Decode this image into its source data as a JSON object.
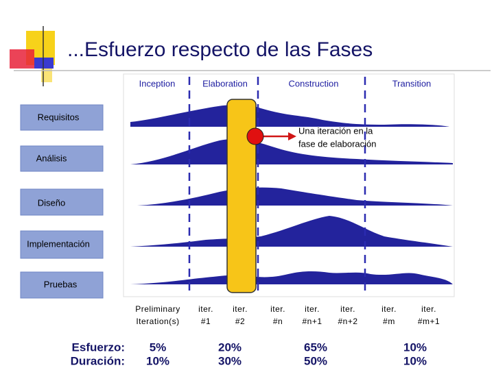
{
  "header": {
    "title": "...Esfuerzo respecto de las Fases"
  },
  "phases": [
    "Inception",
    "Elaboration",
    "Construction",
    "Transition"
  ],
  "disciplines": [
    "Requisitos",
    "Análisis",
    "Diseño",
    "Implementación",
    "Pruebas"
  ],
  "annotation": [
    "Una iteración en la",
    "fase de elaboración"
  ],
  "iterations": [
    [
      "Preliminary",
      "Iteration(s)"
    ],
    [
      "iter.",
      "#1"
    ],
    [
      "iter.",
      "#2"
    ],
    [
      "iter.",
      "#n"
    ],
    [
      "iter.",
      "#n+1"
    ],
    [
      "iter.",
      "#n+2"
    ],
    [
      "iter.",
      "#m"
    ],
    [
      "iter.",
      "#m+1"
    ]
  ],
  "effort": {
    "label": "Esfuerzo:",
    "values": [
      "5%",
      "20%",
      "65%",
      "10%"
    ]
  },
  "duration": {
    "label": "Duración:",
    "values": [
      "10%",
      "30%",
      "50%",
      "10%"
    ]
  }
}
